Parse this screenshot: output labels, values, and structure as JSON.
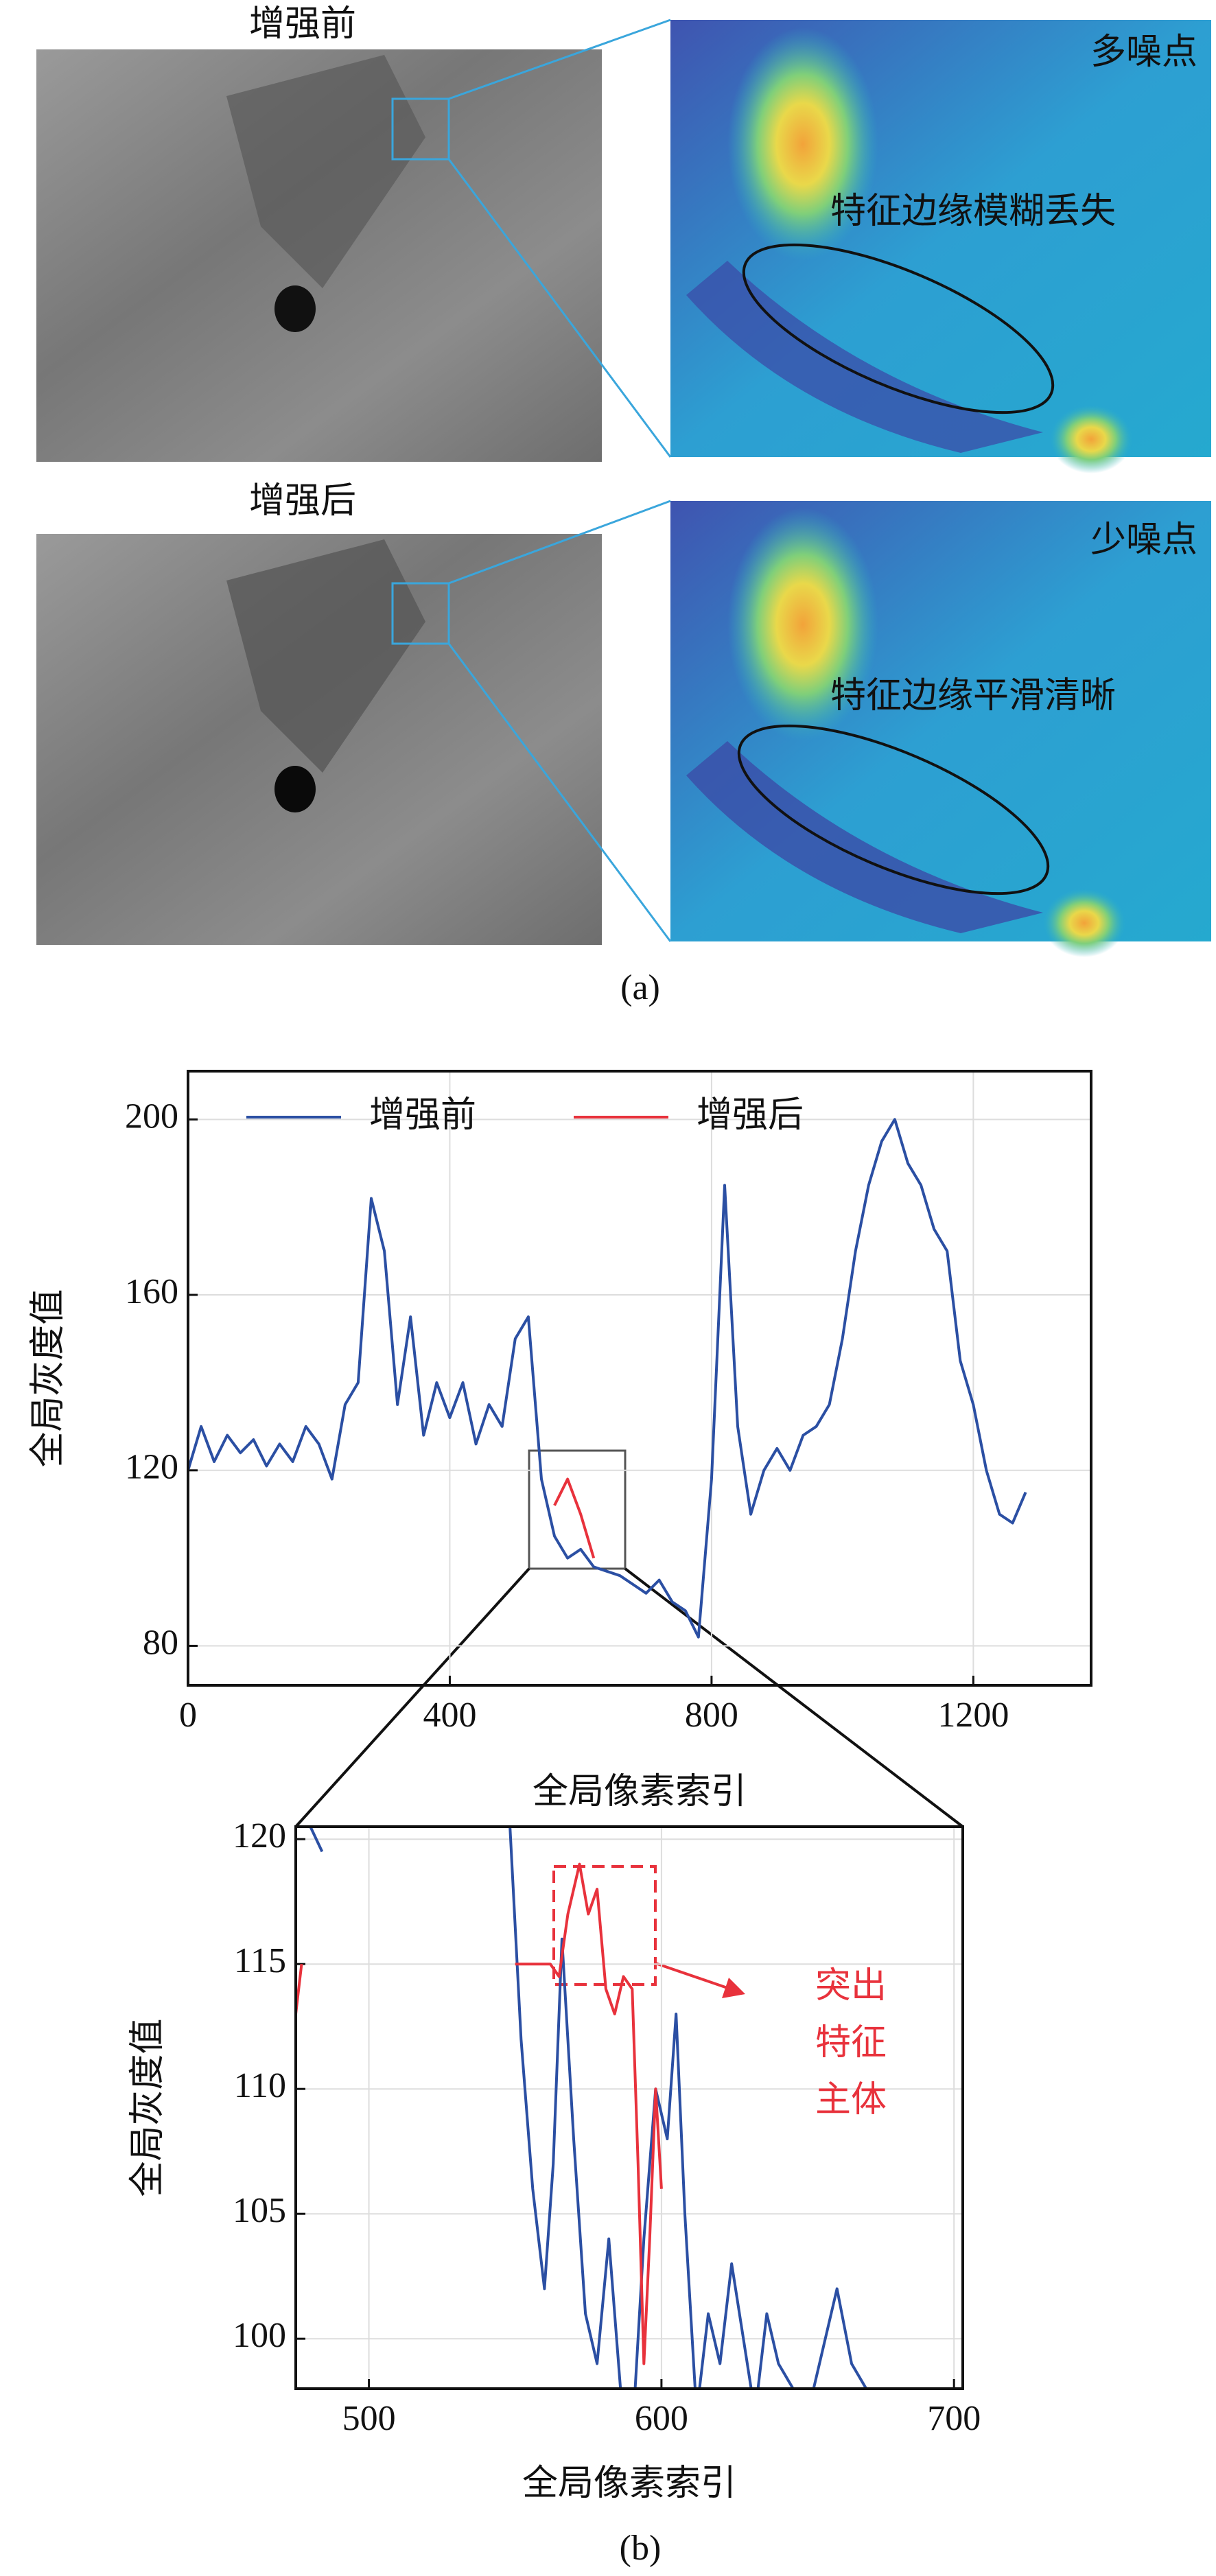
{
  "panel_a": {
    "before_label": "增强前",
    "after_label": "增强后",
    "before_note": "多噪点",
    "before_feature": "特征边缘模糊丢失",
    "after_note": "少噪点",
    "after_feature": "特征边缘平滑清晰",
    "caption": "(a)"
  },
  "caption_b": "(b)",
  "chart_data": [
    {
      "type": "line",
      "xlabel": "全局像素索引",
      "ylabel": "全局灰度值",
      "x": [
        0,
        20,
        40,
        60,
        80,
        100,
        120,
        140,
        160,
        180,
        200,
        220,
        240,
        260,
        280,
        300,
        320,
        340,
        360,
        380,
        400,
        420,
        440,
        460,
        480,
        500,
        520,
        540,
        560,
        580,
        600,
        620,
        640,
        660,
        680,
        700,
        720,
        740,
        760,
        780,
        800,
        820,
        840,
        860,
        880,
        900,
        920,
        940,
        960,
        980,
        1000,
        1020,
        1040,
        1060,
        1080,
        1100,
        1120,
        1140,
        1160,
        1180,
        1200,
        1220,
        1240,
        1260,
        1280
      ],
      "series": [
        {
          "name": "增强前",
          "color": "#2b4fa3",
          "values": [
            120,
            130,
            122,
            128,
            124,
            127,
            121,
            126,
            122,
            130,
            126,
            118,
            135,
            140,
            182,
            170,
            135,
            155,
            128,
            140,
            132,
            140,
            126,
            135,
            130,
            150,
            155,
            118,
            105,
            100,
            102,
            98,
            97,
            96,
            94,
            92,
            95,
            90,
            88,
            82,
            118,
            185,
            130,
            110,
            120,
            125,
            120,
            128,
            130,
            135,
            150,
            170,
            185,
            195,
            200,
            190,
            185,
            175,
            170,
            145,
            135,
            120,
            110,
            108,
            115
          ]
        },
        {
          "name": "增强后",
          "color": "#e8323c",
          "values": [
            null,
            null,
            null,
            null,
            null,
            null,
            null,
            null,
            null,
            null,
            null,
            null,
            null,
            null,
            null,
            null,
            null,
            null,
            null,
            null,
            null,
            null,
            null,
            null,
            null,
            null,
            null,
            null,
            112,
            118,
            110,
            100,
            null,
            null,
            null,
            null,
            null,
            null,
            null,
            null,
            null,
            null,
            null,
            null,
            null,
            null,
            null,
            null,
            null,
            null,
            null,
            null,
            null,
            null,
            null,
            null,
            null,
            null,
            null,
            null,
            null,
            null,
            null,
            null,
            null
          ]
        }
      ],
      "xlim": [
        0,
        1380
      ],
      "xticks": [
        0,
        400,
        800,
        1200
      ],
      "ylim": [
        71,
        211
      ],
      "yticks": [
        80,
        120,
        160,
        200
      ],
      "grid": true,
      "legend": "upper left"
    },
    {
      "type": "line",
      "xlabel": "全局像素索引",
      "ylabel": "全局灰度值",
      "series": [
        {
          "name": "增强前",
          "color": "#2b4fa3",
          "x": [
            480,
            484,
            520,
            548,
            552,
            556,
            560,
            563,
            566,
            570,
            574,
            578,
            582,
            586,
            590,
            594,
            598,
            602,
            605,
            608,
            612,
            616,
            620,
            624,
            628,
            632,
            636,
            640,
            650,
            660,
            665,
            670,
            680,
            700
          ],
          "values": [
            120.5,
            119.5,
            null,
            121,
            112,
            106,
            102,
            107,
            116,
            108,
            101,
            99,
            104,
            98,
            96,
            104,
            110,
            108,
            113,
            105,
            97,
            101,
            99,
            103,
            100,
            97,
            101,
            99,
            97,
            102,
            99,
            98,
            97,
            98
          ]
        },
        {
          "name": "增强后",
          "color": "#e8323c",
          "x": [
            475,
            477,
            480,
            550,
            562,
            565,
            568,
            572,
            575,
            578,
            581,
            584,
            587,
            590,
            592,
            594,
            596,
            598,
            600
          ],
          "values": [
            113,
            115,
            null,
            115,
            115,
            114.5,
            117,
            119,
            117,
            118,
            114,
            113,
            114.5,
            114,
            107,
            99,
            104,
            110,
            106
          ]
        }
      ],
      "xlim": [
        475,
        703
      ],
      "xticks": [
        500,
        600,
        700
      ],
      "ylim": [
        98,
        120.5
      ],
      "yticks": [
        100,
        105,
        110,
        115,
        120
      ],
      "grid": true,
      "annotation": [
        "突出",
        "特征",
        "主体"
      ]
    }
  ]
}
